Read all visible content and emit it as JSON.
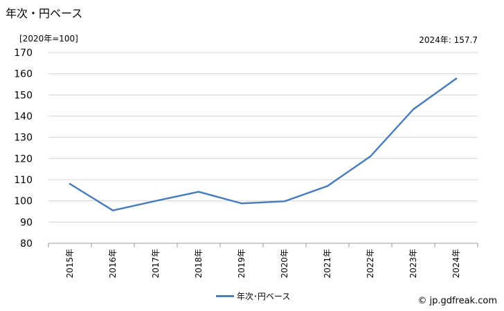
{
  "header": {
    "title": "年次・円ベース",
    "unit": "[2020年=100]",
    "latest": "2024年: 157.7"
  },
  "chart_data": {
    "type": "line",
    "categories": [
      "2015年",
      "2016年",
      "2017年",
      "2018年",
      "2019年",
      "2020年",
      "2021年",
      "2022年",
      "2023年",
      "2024年"
    ],
    "series": [
      {
        "name": "年次･円ベース",
        "values": [
          108,
          95.5,
          100,
          104.3,
          98.8,
          99.8,
          107,
          121,
          143.2,
          157.7
        ],
        "color": "#4a7ebb"
      }
    ],
    "yticks": [
      80,
      90,
      100,
      110,
      120,
      130,
      140,
      150,
      160,
      170
    ],
    "ylim": [
      80,
      170
    ],
    "grid": true,
    "legend": "bottom-center"
  },
  "footer": {
    "source": "© jp.gdfreak.com"
  }
}
